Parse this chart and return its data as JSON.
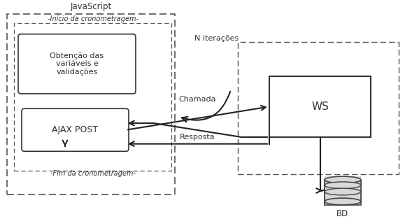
{
  "title": "",
  "background_color": "#ffffff",
  "js_label": "JavaScript",
  "inicio_label": "-Início da cronometragem-",
  "fim_label": "-Fim da cronometragem-",
  "obtencao_label": "Obtenção das\nvariáveis e\nvalidações",
  "ajax_label": "AJAX POST",
  "ws_label": "WS",
  "bd_label": "BD",
  "chamada_label": "Chamada",
  "resposta_label": "Resposta",
  "n_iter_label": "N iterações"
}
